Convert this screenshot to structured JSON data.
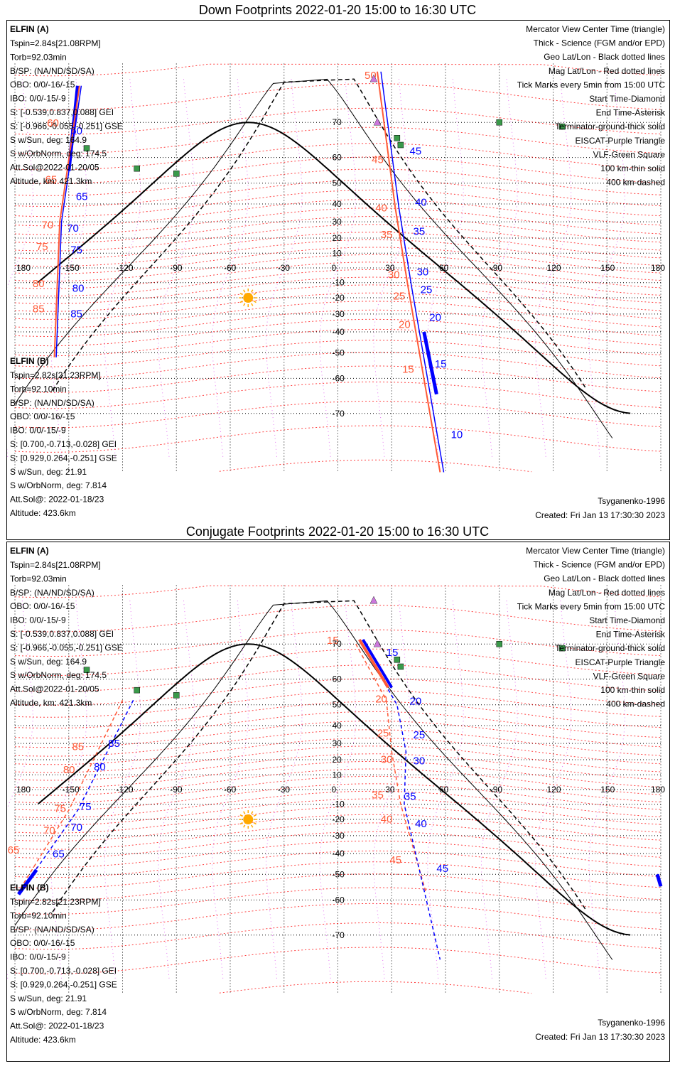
{
  "colors": {
    "elfin_a": "#0000ff",
    "elfin_b": "#ff5a37",
    "geo_grid": "#000000",
    "mag_grid": "#ff0000",
    "mlt_grid": "#dd55ee",
    "eiscat": "#cc77dd",
    "vlf": "#3a9a4a",
    "sun": "#ffaa00"
  },
  "axis_labels": {
    "lon": [
      "180",
      "-150",
      "-120",
      "-90",
      "-60",
      "-30",
      "0",
      "30",
      "60",
      "90",
      "120",
      "150",
      "180"
    ],
    "lat_up": [
      "70",
      "60",
      "50",
      "40",
      "30",
      "20",
      "10"
    ],
    "lat_down": [
      "-10",
      "-20",
      "-30",
      "-40",
      "-50",
      "-60",
      "-70"
    ]
  },
  "legend": [
    {
      "text": "Mercator View Center Time (triangle)",
      "color": "#000000"
    },
    {
      "text": "Thick - Science (FGM and/or EPD)",
      "color": "#000000"
    },
    {
      "text": "Geo Lat/Lon - Black dotted lines",
      "color": "#000000"
    },
    {
      "text": "Mag Lat/Lon - Red dotted lines",
      "color": "#ff0000"
    },
    {
      "text": "Tick Marks every 5min from 15:00 UTC",
      "color": "#000000"
    },
    {
      "text": "Start Time-Diamond",
      "color": "#000000"
    },
    {
      "text": "End Time-Asterisk",
      "color": "#000000"
    },
    {
      "text": "Terminator-ground-thick solid",
      "color": "#000000"
    },
    {
      "text": "EISCAT-Purple Triangle",
      "color": "#cc77dd"
    },
    {
      "text": "VLF-Green Square",
      "color": "#3a9a4a"
    },
    {
      "text": "100 km-thin solid",
      "color": "#000000"
    },
    {
      "text": "400 km-dashed",
      "color": "#000000"
    }
  ],
  "info_a": {
    "name": "ELFIN (A)",
    "lines": [
      "Tspin=2.84s[21.08RPM]",
      "Torb=92.03min",
      "B/SP: (NA/ND/SD/SA)",
      "OBO: 0/0/-16/-15",
      "IBO: 0/0/-15/-9",
      "S: [-0.539,0.837,0.088] GEI",
      "S: [-0.966,-0.055,-0.251] GSE",
      "S w/Sun, deg: 164.9",
      "S w/OrbNorm, deg: 174.5",
      "Att.Sol@2022-01-20/05"
    ]
  },
  "info_b": {
    "name": "ELFIN (B)",
    "lines": [
      "Tspin=2.82s[21.23RPM]",
      "Torb=92.10min",
      "B/SP: (NA/ND/SD/SA)",
      "OBO: 0/0/-16/-15",
      "IBO: 0/0/-15/-9",
      "S: [0.700,-0.713,-0.028] GEI",
      "S: [0.929,0.264,-0.251] GSE",
      "S w/Sun, deg: 21.91",
      "S w/OrbNorm, deg: 7.814",
      "Att.Sol@: 2022-01-18/23",
      "Altitude: 423.6km"
    ]
  },
  "model": "Tsyganenko-1996",
  "created": "Created: Fri Jan 13 17:30:30 2023",
  "panels": [
    {
      "title": "Down Footprints 2022-01-20 15:00 to 16:30 UTC",
      "altitude_a": "Altitude, km: 421.3km",
      "a_track": [
        [
          -147.5,
          72
        ],
        [
          -150,
          38
        ],
        [
          -157,
          -55
        ]
      ],
      "a_ticks": [
        {
          "t": "60",
          "x": -149,
          "y": 67
        },
        {
          "t": "65",
          "x": -146,
          "y": 42
        },
        {
          "t": "70",
          "x": -151,
          "y": 24
        },
        {
          "t": "75",
          "x": -149,
          "y": 10
        },
        {
          "t": "80",
          "x": -148,
          "y": -16
        },
        {
          "t": "85",
          "x": -149,
          "y": -32
        },
        {
          "t": "10",
          "x": 63,
          "y": -75
        },
        {
          "t": "15",
          "x": 54,
          "y": -56
        },
        {
          "t": "20",
          "x": 51,
          "y": -34
        },
        {
          "t": "25",
          "x": 46,
          "y": -17
        },
        {
          "t": "30",
          "x": 44,
          "y": -5
        },
        {
          "t": "35",
          "x": 42,
          "y": 22
        },
        {
          "t": "40",
          "x": 43,
          "y": 39
        },
        {
          "t": "45",
          "x": 40,
          "y": 61
        }
      ],
      "b_ticks": [
        {
          "t": "50",
          "x": 22,
          "y": 78
        },
        {
          "t": "45",
          "x": 26,
          "y": 58
        },
        {
          "t": "40",
          "x": 28,
          "y": 36
        },
        {
          "t": "35",
          "x": 31,
          "y": 20
        },
        {
          "t": "30",
          "x": 35,
          "y": -7
        },
        {
          "t": "25",
          "x": 38,
          "y": -21
        },
        {
          "t": "20",
          "x": 41,
          "y": -38
        },
        {
          "t": "15",
          "x": 43,
          "y": -58
        },
        {
          "t": "60",
          "x": -155,
          "y": 69
        },
        {
          "t": "65",
          "x": -156,
          "y": 50
        },
        {
          "t": "70",
          "x": -158,
          "y": 26
        },
        {
          "t": "75",
          "x": -161,
          "y": 12
        },
        {
          "t": "80",
          "x": -163,
          "y": -13
        },
        {
          "t": "85",
          "x": -163,
          "y": -29
        }
      ],
      "b_track_e": [
        [
          29,
          73
        ],
        [
          33,
          40
        ],
        [
          40,
          -20
        ],
        [
          62,
          -85
        ]
      ],
      "a_track_e": [
        [
          27,
          72
        ],
        [
          37,
          36
        ],
        [
          40,
          -5
        ],
        [
          46,
          -43
        ],
        [
          65,
          -85
        ]
      ]
    },
    {
      "title": "Conjugate Footprints 2022-01-20 15:00 to 16:30 UTC",
      "altitude_a": "Altitude, km: 421.3km",
      "a_ticks": [
        {
          "t": "15",
          "x": 27,
          "y": 67
        },
        {
          "t": "20",
          "x": 40,
          "y": 50
        },
        {
          "t": "25",
          "x": 42,
          "y": 33
        },
        {
          "t": "30",
          "x": 42,
          "y": 17
        },
        {
          "t": "35",
          "x": 37,
          "y": -7
        },
        {
          "t": "40",
          "x": 43,
          "y": -25
        },
        {
          "t": "45",
          "x": 55,
          "y": -49
        },
        {
          "t": "65",
          "x": -159,
          "y": -42
        },
        {
          "t": "70",
          "x": -149,
          "y": -27
        },
        {
          "t": "75",
          "x": -144,
          "y": -14
        },
        {
          "t": "80",
          "x": -136,
          "y": 13
        },
        {
          "t": "85",
          "x": -128,
          "y": 28
        }
      ],
      "b_ticks": [
        {
          "t": "15",
          "x": 1,
          "y": 70
        },
        {
          "t": "20",
          "x": 28,
          "y": 51
        },
        {
          "t": "25",
          "x": 29,
          "y": 34
        },
        {
          "t": "30",
          "x": 31,
          "y": 18
        },
        {
          "t": "35",
          "x": 26,
          "y": -6
        },
        {
          "t": "40",
          "x": 31,
          "y": -22
        },
        {
          "t": "45",
          "x": 36,
          "y": -45
        },
        {
          "t": "65",
          "x": -177,
          "y": -40
        },
        {
          "t": "70",
          "x": -157,
          "y": -29
        },
        {
          "t": "75",
          "x": -151,
          "y": -15
        },
        {
          "t": "80",
          "x": -146,
          "y": 11
        },
        {
          "t": "85",
          "x": -141,
          "y": 26
        }
      ]
    }
  ]
}
